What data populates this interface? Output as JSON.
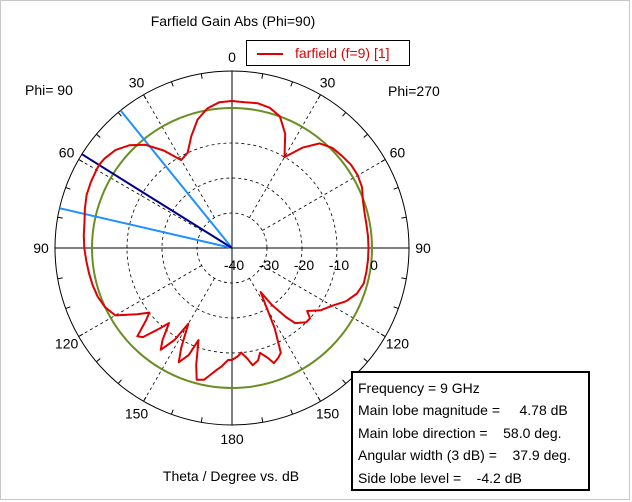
{
  "chart_data": {
    "type": "polar",
    "title": "Farfield Gain Abs (Phi=90)",
    "xlabel": "Theta / Degree vs. dB",
    "left_side_label": "Phi= 90",
    "right_side_label": "Phi=270",
    "angle_labels": {
      "0": "0",
      "30": "30",
      "60": "60",
      "90": "90",
      "120": "120",
      "150": "150",
      "180": "180",
      "210": "150",
      "240": "120",
      "270": "90",
      "300": "60",
      "330": "30"
    },
    "radial_ticks": [
      "-40",
      "-30",
      "-20",
      "-10",
      "0"
    ],
    "radial_range": [
      -40,
      10
    ],
    "legend": {
      "entries": [
        "farfield (f=9) [1]"
      ],
      "placement": "top-center"
    },
    "reference_circle_db": 0,
    "markers": {
      "main_lobe_db": 4.78,
      "main_lobe_angle": 58.0,
      "beamwidth_edges": [
        39,
        77
      ]
    },
    "series": [
      {
        "name": "farfield (f=9) [1]",
        "color": "#e00000",
        "angles": [
          0,
          5,
          10,
          15,
          20,
          25,
          30,
          35,
          40,
          45,
          50,
          55,
          58,
          60,
          65,
          70,
          75,
          80,
          85,
          90,
          95,
          100,
          105,
          110,
          115,
          120,
          125,
          128,
          130,
          133,
          135,
          138,
          140,
          143,
          145,
          148,
          150,
          153,
          155,
          158,
          160,
          163,
          165,
          168,
          170,
          173,
          175,
          178,
          180,
          183,
          185,
          188,
          190,
          193,
          195,
          198,
          200,
          203,
          205,
          208,
          210,
          213,
          215,
          218,
          220,
          225,
          228,
          230,
          235,
          240,
          245,
          250,
          255,
          260,
          265,
          270,
          275,
          280,
          285,
          290,
          295,
          300,
          305,
          310,
          315,
          320,
          325,
          330,
          335,
          340,
          345,
          350,
          355,
          360
        ],
        "values": [
          2,
          1.8,
          0.5,
          -2,
          -6,
          -10,
          -11,
          -6,
          -1.5,
          1.5,
          3.5,
          4.5,
          4.78,
          4.7,
          4.5,
          4.2,
          3.5,
          2.8,
          2.5,
          2.2,
          1.8,
          1.5,
          1.2,
          0.8,
          0,
          -1.5,
          -7,
          -10,
          -8,
          -3,
          -4,
          -9,
          -12,
          -7,
          -4.5,
          -9,
          -15,
          -8,
          -4,
          -7,
          -12,
          -5,
          -1,
          -1.5,
          -3,
          -5,
          -6,
          -8,
          -8,
          -9,
          -10,
          -8,
          -6,
          -7,
          -9,
          -7,
          -5,
          -6,
          -7,
          -14,
          -20,
          -25,
          -20,
          -15,
          -12,
          -10,
          -10,
          -12,
          -9,
          -7,
          -4,
          -2,
          -1,
          -1,
          -1,
          -1,
          -1,
          -1,
          -0.8,
          -0.2,
          1,
          1.5,
          1.5,
          1,
          0.5,
          -1,
          -5,
          -10,
          -4,
          0,
          1.5,
          2,
          1.8,
          2
        ]
      }
    ],
    "info": {
      "frequency": "Frequency = 9 GHz",
      "main_lobe_magnitude": "Main lobe magnitude =     4.78 dB",
      "main_lobe_direction": "Main lobe direction =    58.0 deg.",
      "angular_width": "Angular width (3 dB) =    37.9 deg.",
      "side_lobe_level": "Side lobe level =    -4.2 dB"
    }
  },
  "colors": {
    "pattern": "#e00000",
    "reference_circle": "#6b8e23",
    "main_lobe_marker": "#00008b",
    "beamwidth_marker": "#1e90ff",
    "grid": "#000000"
  }
}
